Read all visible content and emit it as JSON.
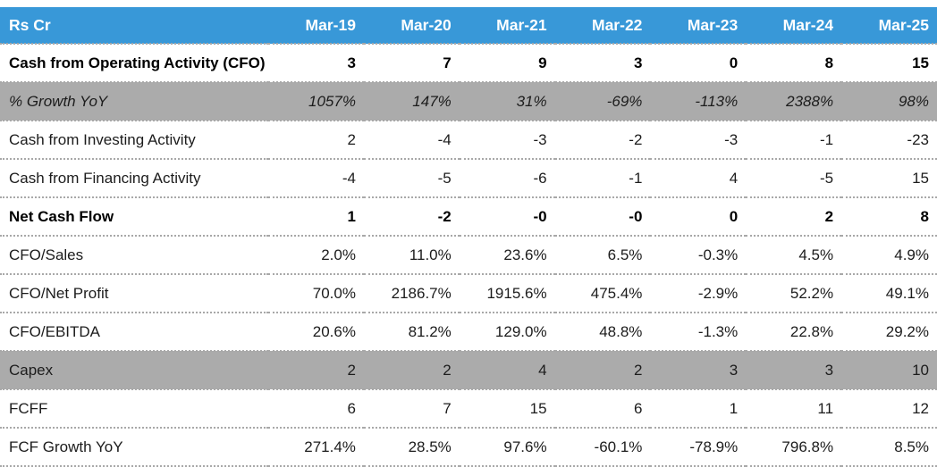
{
  "table": {
    "corner_label": "Rs Cr",
    "columns": [
      "Mar-19",
      "Mar-20",
      "Mar-21",
      "Mar-22",
      "Mar-23",
      "Mar-24",
      "Mar-25"
    ],
    "rows": [
      {
        "label": "Cash from Operating Activity (CFO)",
        "style": "bold",
        "values": [
          "3",
          "7",
          "9",
          "3",
          "0",
          "8",
          "15"
        ]
      },
      {
        "label": "% Growth YoY",
        "style": "gray-italic",
        "values": [
          "1057%",
          "147%",
          "31%",
          "-69%",
          "-113%",
          "2388%",
          "98%"
        ]
      },
      {
        "label": "Cash from Investing Activity",
        "style": "normal",
        "values": [
          "2",
          "-4",
          "-3",
          "-2",
          "-3",
          "-1",
          "-23"
        ]
      },
      {
        "label": "Cash from Financing Activity",
        "style": "normal",
        "values": [
          "-4",
          "-5",
          "-6",
          "-1",
          "4",
          "-5",
          "15"
        ]
      },
      {
        "label": "Net Cash Flow",
        "style": "bold",
        "values": [
          "1",
          "-2",
          "-0",
          "-0",
          "0",
          "2",
          "8"
        ]
      },
      {
        "label": "CFO/Sales",
        "style": "normal",
        "values": [
          "2.0%",
          "11.0%",
          "23.6%",
          "6.5%",
          "-0.3%",
          "4.5%",
          "4.9%"
        ]
      },
      {
        "label": "CFO/Net Profit",
        "style": "normal",
        "values": [
          "70.0%",
          "2186.7%",
          "1915.6%",
          "475.4%",
          "-2.9%",
          "52.2%",
          "49.1%"
        ]
      },
      {
        "label": "CFO/EBITDA",
        "style": "normal",
        "values": [
          "20.6%",
          "81.2%",
          "129.0%",
          "48.8%",
          "-1.3%",
          "22.8%",
          "29.2%"
        ]
      },
      {
        "label": "Capex",
        "style": "gray",
        "values": [
          "2",
          "2",
          "4",
          "2",
          "3",
          "3",
          "10"
        ]
      },
      {
        "label": "FCFF",
        "style": "normal",
        "values": [
          "6",
          "7",
          "15",
          "6",
          "1",
          "11",
          "12"
        ]
      },
      {
        "label": "FCF Growth YoY",
        "style": "normal",
        "values": [
          "271.4%",
          "28.5%",
          "97.6%",
          "-60.1%",
          "-78.9%",
          "796.8%",
          "8.5%"
        ]
      }
    ],
    "colors": {
      "header_bg": "#3898d8",
      "header_text": "#ffffff",
      "gray_row_bg": "#ababab",
      "text": "#1c1c1c",
      "dotted_border": "#a8a8a8"
    }
  },
  "chart_data": {
    "type": "table",
    "title": "Rs Cr",
    "categories": [
      "Mar-19",
      "Mar-20",
      "Mar-21",
      "Mar-22",
      "Mar-23",
      "Mar-24",
      "Mar-25"
    ],
    "series": [
      {
        "name": "Cash from Operating Activity (CFO)",
        "values": [
          3,
          7,
          9,
          3,
          0,
          8,
          15
        ]
      },
      {
        "name": "% Growth YoY",
        "values": [
          "1057%",
          "147%",
          "31%",
          "-69%",
          "-113%",
          "2388%",
          "98%"
        ]
      },
      {
        "name": "Cash from Investing Activity",
        "values": [
          2,
          -4,
          -3,
          -2,
          -3,
          -1,
          -23
        ]
      },
      {
        "name": "Cash from Financing Activity",
        "values": [
          -4,
          -5,
          -6,
          -1,
          4,
          -5,
          15
        ]
      },
      {
        "name": "Net Cash Flow",
        "values": [
          1,
          -2,
          0,
          0,
          0,
          2,
          8
        ]
      },
      {
        "name": "CFO/Sales",
        "values": [
          "2.0%",
          "11.0%",
          "23.6%",
          "6.5%",
          "-0.3%",
          "4.5%",
          "4.9%"
        ]
      },
      {
        "name": "CFO/Net Profit",
        "values": [
          "70.0%",
          "2186.7%",
          "1915.6%",
          "475.4%",
          "-2.9%",
          "52.2%",
          "49.1%"
        ]
      },
      {
        "name": "CFO/EBITDA",
        "values": [
          "20.6%",
          "81.2%",
          "129.0%",
          "48.8%",
          "-1.3%",
          "22.8%",
          "29.2%"
        ]
      },
      {
        "name": "Capex",
        "values": [
          2,
          2,
          4,
          2,
          3,
          3,
          10
        ]
      },
      {
        "name": "FCFF",
        "values": [
          6,
          7,
          15,
          6,
          1,
          11,
          12
        ]
      },
      {
        "name": "FCF Growth YoY",
        "values": [
          "271.4%",
          "28.5%",
          "97.6%",
          "-60.1%",
          "-78.9%",
          "796.8%",
          "8.5%"
        ]
      }
    ],
    "layout_hints": {
      "header_row_highlight": "blue",
      "highlighted_rows_gray": [
        "% Growth YoY",
        "Capex"
      ],
      "bold_rows": [
        "Cash from Operating Activity (CFO)",
        "Net Cash Flow"
      ],
      "row_separator": "dotted"
    }
  }
}
